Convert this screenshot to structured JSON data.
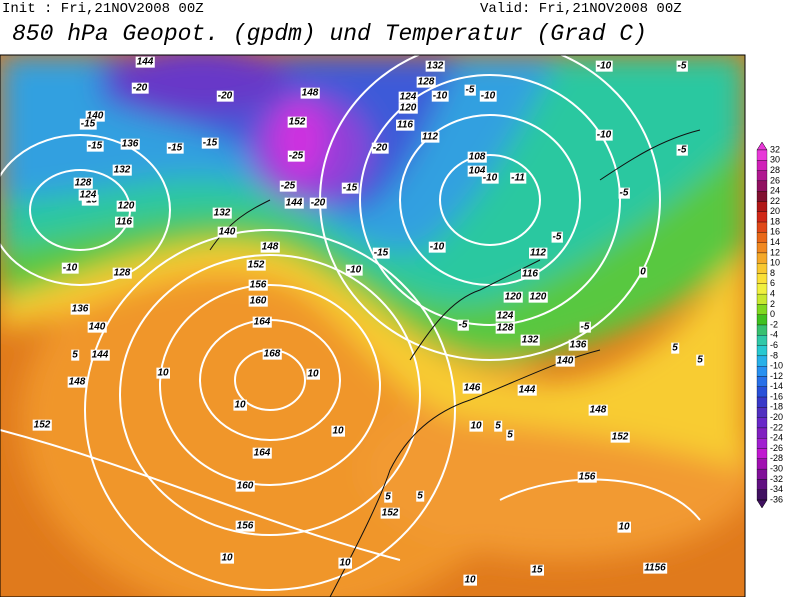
{
  "header": {
    "init": "Init : Fri,21NOV2008 00Z",
    "valid": "Valid: Fri,21NOV2008 00Z",
    "title": "850 hPa Geopot. (gpdm) und Temperatur (Grad C)"
  },
  "colorbar": {
    "labels": [
      "32",
      "30",
      "28",
      "26",
      "24",
      "22",
      "20",
      "18",
      "16",
      "14",
      "12",
      "10",
      "8",
      "6",
      "4",
      "2",
      "0",
      "-2",
      "-4",
      "-6",
      "-8",
      "-10",
      "-12",
      "-14",
      "-16",
      "-18",
      "-20",
      "-22",
      "-24",
      "-26",
      "-28",
      "-30",
      "-32",
      "-34",
      "-36"
    ]
  },
  "map": {
    "contour_labels": [
      "144",
      "-20",
      "-20",
      "140",
      "-15",
      "-15",
      "136",
      "-15",
      "-15",
      "132",
      "128",
      "-15",
      "124",
      "120",
      "116",
      "-10",
      "128",
      "136",
      "140",
      "144",
      "148",
      "152",
      "132",
      "140",
      "148",
      "152",
      "156",
      "160",
      "164",
      "168",
      "10",
      "10",
      "10",
      "164",
      "160",
      "156",
      "152",
      "10",
      "10",
      "5",
      "5",
      "10",
      "5",
      "148",
      "152",
      "-25",
      "-25",
      "144",
      "-20",
      "-20",
      "-15",
      "-10",
      "-15",
      "132",
      "128",
      "124",
      "120",
      "116",
      "112",
      "108",
      "104",
      "-10",
      "-11",
      "-10",
      "-5",
      "-10",
      "-10",
      "-5",
      "-10",
      "-5",
      "-5",
      "-10",
      "112",
      "116",
      "120",
      "120",
      "124",
      "128",
      "-5",
      "132",
      "136",
      "140",
      "-5",
      "0",
      "5",
      "5",
      "146",
      "144",
      "148",
      "152",
      "156",
      "1156",
      "10",
      "15",
      "10",
      "10",
      "5",
      "5",
      "-5"
    ]
  }
}
